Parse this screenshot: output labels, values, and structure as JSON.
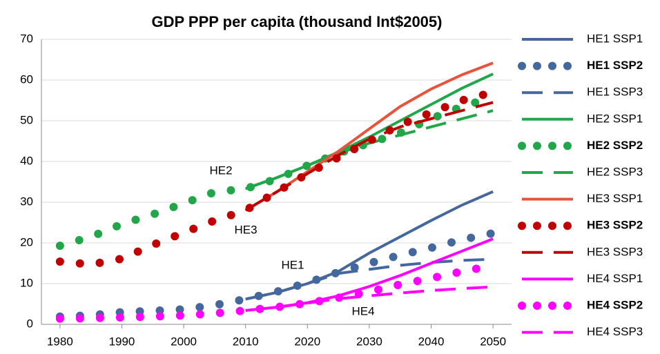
{
  "chart_data": {
    "type": "line",
    "title": "GDP PPP per capita (thousand Int$2005)",
    "xlim": [
      1977,
      2053
    ],
    "xticks": [
      1980,
      1990,
      2000,
      2010,
      2020,
      2030,
      2040,
      2050
    ],
    "ylim": [
      0,
      70
    ],
    "yticks": [
      0,
      10,
      20,
      30,
      40,
      50,
      60,
      70
    ],
    "grid": true,
    "legend": "right",
    "annotations": [
      "HE2",
      "HE3",
      "HE1",
      "HE4"
    ],
    "series": [
      {
        "name": "HE1 SSP1",
        "color": "#44689e",
        "style": "solid",
        "x": [
          2010,
          2015,
          2020,
          2025,
          2030,
          2035,
          2040,
          2045,
          2050
        ],
        "values": [
          6.2,
          7.8,
          10,
          13,
          17.5,
          21.5,
          25.5,
          29.3,
          32.6
        ]
      },
      {
        "name": "HE1 SSP2",
        "color": "#44689e",
        "style": "dotted",
        "bold": true,
        "x": [
          1980,
          1985,
          1990,
          1995,
          2000,
          2005,
          2010,
          2015,
          2020,
          2025,
          2030,
          2035,
          2040,
          2045,
          2050
        ],
        "values": [
          1.9,
          2.2,
          3,
          3.3,
          3.7,
          4.7,
          6.2,
          8,
          10.2,
          12.8,
          15,
          17,
          18.8,
          20.8,
          22.4
        ]
      },
      {
        "name": "HE1 SSP3",
        "color": "#44689e",
        "style": "dashed",
        "x": [
          2010,
          2015,
          2020,
          2025,
          2030,
          2035,
          2040,
          2045,
          2050
        ],
        "values": [
          6.2,
          7.8,
          10,
          12.5,
          13.5,
          14.5,
          15.2,
          15.7,
          16
        ]
      },
      {
        "name": "HE2 SSP1",
        "color": "#21a749",
        "style": "solid",
        "x": [
          2010,
          2015,
          2020,
          2025,
          2030,
          2035,
          2040,
          2045,
          2050
        ],
        "values": [
          33.3,
          36,
          39,
          42.3,
          46,
          50,
          54,
          58,
          61.5
        ]
      },
      {
        "name": "HE2 SSP2",
        "color": "#21a749",
        "style": "dotted",
        "bold": true,
        "x": [
          1980,
          1985,
          1990,
          1995,
          2000,
          2005,
          2010,
          2015,
          2020,
          2025,
          2030,
          2035,
          2040,
          2045,
          2050
        ],
        "values": [
          19.3,
          21.5,
          24.6,
          27,
          29.7,
          32.5,
          33.3,
          35.7,
          39,
          42,
          44.5,
          47,
          50.5,
          53.5,
          55.8
        ]
      },
      {
        "name": "HE2 SSP3",
        "color": "#21a749",
        "style": "dashed",
        "x": [
          2010,
          2015,
          2020,
          2025,
          2030,
          2035,
          2040,
          2045,
          2050
        ],
        "values": [
          33.3,
          36,
          39,
          42,
          44.5,
          46.5,
          48.5,
          50.5,
          52.5
        ]
      },
      {
        "name": "HE3 SSP1",
        "color": "#e8533c",
        "style": "solid",
        "x": [
          2010,
          2015,
          2020,
          2025,
          2030,
          2035,
          2040,
          2045,
          2050
        ],
        "values": [
          28,
          32.5,
          37.5,
          42.5,
          48,
          53.5,
          57.8,
          61.3,
          64.2
        ]
      },
      {
        "name": "HE3 SSP2",
        "color": "#c00000",
        "style": "dotted",
        "bold": true,
        "x": [
          1980,
          1985,
          1990,
          1995,
          2000,
          2005,
          2010,
          2015,
          2020,
          2025,
          2030,
          2035,
          2040,
          2045,
          2050
        ],
        "values": [
          15.4,
          14.7,
          16.1,
          19.5,
          22.5,
          25.5,
          28,
          32.5,
          37,
          41,
          45,
          49,
          52,
          55,
          57
        ]
      },
      {
        "name": "HE3 SSP3",
        "color": "#c00000",
        "style": "dashed",
        "x": [
          2010,
          2015,
          2020,
          2025,
          2030,
          2035,
          2040,
          2045,
          2050
        ],
        "values": [
          28,
          32.5,
          37,
          41.5,
          45.5,
          48.5,
          50.5,
          52.5,
          54.5
        ]
      },
      {
        "name": "HE4 SSP1",
        "color": "#ff00ff",
        "style": "solid",
        "x": [
          2010,
          2015,
          2020,
          2025,
          2030,
          2035,
          2040,
          2045,
          2050
        ],
        "values": [
          3.4,
          4.2,
          5.3,
          7,
          9.3,
          12,
          15,
          18,
          21
        ]
      },
      {
        "name": "HE4 SSP2",
        "color": "#ff00ff",
        "style": "dotted",
        "bold": true,
        "x": [
          1980,
          1985,
          1990,
          1995,
          2000,
          2005,
          2010,
          2015,
          2020,
          2025,
          2030,
          2035,
          2040,
          2045,
          2050
        ],
        "values": [
          1.4,
          1.5,
          1.7,
          1.9,
          2.2,
          2.7,
          3.4,
          4.2,
          5.2,
          6.5,
          8,
          9.8,
          11.3,
          13,
          14.4
        ]
      },
      {
        "name": "HE4 SSP3",
        "color": "#ff00ff",
        "style": "dashed",
        "x": [
          2010,
          2015,
          2020,
          2025,
          2030,
          2035,
          2040,
          2045,
          2050
        ],
        "values": [
          3.4,
          4.2,
          5.2,
          6.3,
          7,
          7.7,
          8.3,
          8.8,
          9.2
        ]
      }
    ]
  }
}
